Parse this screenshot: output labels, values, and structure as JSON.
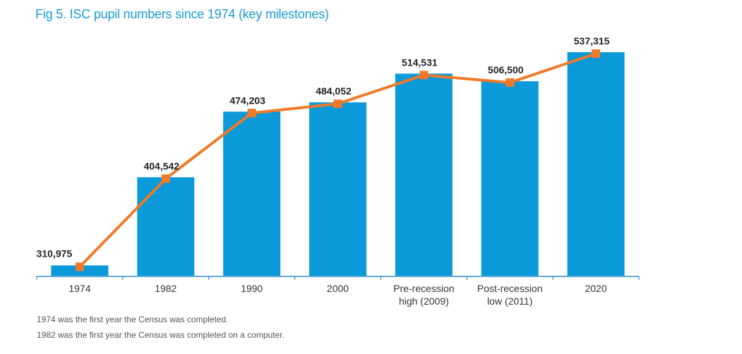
{
  "chart_data": {
    "type": "bar",
    "title": "Fig 5. ISC pupil numbers since 1974 (key milestones)",
    "xlabel": "",
    "ylabel": "",
    "categories": [
      [
        "1974"
      ],
      [
        "1982"
      ],
      [
        "1990"
      ],
      [
        "2000"
      ],
      [
        "Pre-recession",
        "high (2009)"
      ],
      [
        "Post-recession",
        "low (2011)"
      ],
      [
        "2020"
      ]
    ],
    "values": [
      310975,
      404542,
      474203,
      484052,
      514531,
      506500,
      537315
    ],
    "value_labels": [
      "310,975",
      "404,542",
      "474,203",
      "484,052",
      "514,531",
      "506,500",
      "537,315"
    ],
    "ylim": [
      300000,
      537315
    ],
    "grid": false,
    "series_overlay": "line with square markers over the same values",
    "colors": {
      "bar": "#0a99d9",
      "line": "#ef7b2a",
      "axis": "#2b8ec8",
      "title": "#1a9ad6"
    }
  },
  "notes": [
    "1974 was the first year the Census was completed.",
    "1982 was the first year the Census was completed on a computer."
  ]
}
